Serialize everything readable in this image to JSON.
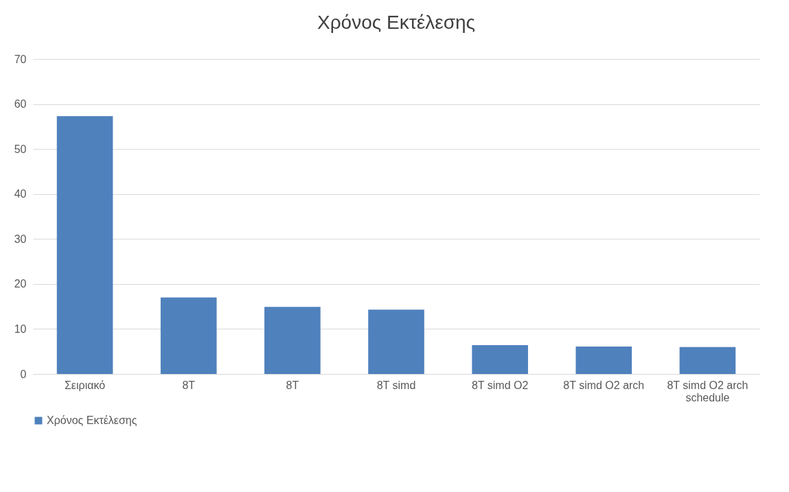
{
  "chart_data": {
    "type": "bar",
    "title": "Χρόνος Εκτέλεσης",
    "categories": [
      "Σειριακό",
      "8T",
      "8T",
      "8T simd",
      "8T simd O2",
      "8T simd O2 arch",
      "8T simd O2 arch schedule"
    ],
    "series": [
      {
        "name": "Χρόνος Εκτέλεσης",
        "color": "#4f81bd",
        "values": [
          57.3,
          17.0,
          14.9,
          14.3,
          6.4,
          6.1,
          6.0
        ]
      }
    ],
    "ylim": [
      0,
      70
    ],
    "yticks": [
      0,
      10,
      20,
      30,
      40,
      50,
      60,
      70
    ],
    "grid": "y",
    "legend": "bottom"
  }
}
